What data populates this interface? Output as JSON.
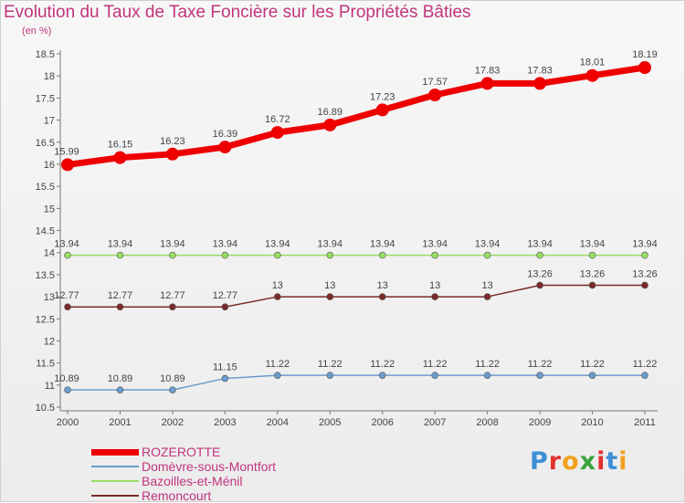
{
  "title": "Evolution du Taux de Taxe Foncière sur les Propriétés Bâties",
  "unit_label": "(en %)",
  "brand": {
    "text": "Proxiti",
    "letters": [
      "P",
      "r",
      "o",
      "x",
      "i",
      "t",
      "i"
    ],
    "colors": [
      "#3c8fd6",
      "#e3312d",
      "#f2a11c",
      "#3aa23a",
      "#e3312d",
      "#3c8fd6",
      "#f2a11c"
    ]
  },
  "chart_data": {
    "type": "line",
    "title": "Evolution du Taux de Taxe Foncière sur les Propriétés Bâties",
    "xlabel": "",
    "ylabel": "(en %)",
    "x": [
      "2000",
      "2001",
      "2002",
      "2003",
      "2004",
      "2005",
      "2006",
      "2007",
      "2008",
      "2009",
      "2010",
      "2011"
    ],
    "ylim": [
      10.5,
      18.5
    ],
    "yticks": [
      "10.5",
      "11",
      "11.5",
      "12",
      "12.5",
      "13",
      "13.5",
      "14",
      "14.5",
      "15",
      "15.5",
      "16",
      "16.5",
      "17",
      "17.5",
      "18",
      "18.5"
    ],
    "grid": false,
    "legend_position": "bottom-left",
    "series": [
      {
        "name": "ROZEROTTE",
        "color": "#ee0000",
        "emphasis": true,
        "values": [
          15.99,
          16.15,
          16.23,
          16.39,
          16.72,
          16.89,
          17.23,
          17.57,
          17.83,
          17.83,
          18.01,
          18.19
        ],
        "labels": [
          "15.99",
          "16.15",
          "16.23",
          "16.39",
          "16.72",
          "16.89",
          "17.23",
          "17.57",
          "17.83",
          "17.83",
          "18.01",
          "18.19"
        ]
      },
      {
        "name": "Domèvre-sous-Montfort",
        "color": "#6a9ccc",
        "values": [
          10.89,
          10.89,
          10.89,
          11.15,
          11.22,
          11.22,
          11.22,
          11.22,
          11.22,
          11.22,
          11.22,
          11.22
        ],
        "labels": [
          "10.89",
          "10.89",
          "10.89",
          "11.15",
          "11.22",
          "11.22",
          "11.22",
          "11.22",
          "11.22",
          "11.22",
          "11.22",
          "11.22"
        ]
      },
      {
        "name": "Bazoilles-et-Ménil",
        "color": "#99dd66",
        "values": [
          13.94,
          13.94,
          13.94,
          13.94,
          13.94,
          13.94,
          13.94,
          13.94,
          13.94,
          13.94,
          13.94,
          13.94
        ],
        "labels": [
          "13.94",
          "13.94",
          "13.94",
          "13.94",
          "13.94",
          "13.94",
          "13.94",
          "13.94",
          "13.94",
          "13.94",
          "13.94",
          "13.94"
        ]
      },
      {
        "name": "Remoncourt",
        "color": "#7a2a2a",
        "values": [
          12.77,
          12.77,
          12.77,
          12.77,
          13,
          13,
          13,
          13,
          13,
          13.26,
          13.26,
          13.26
        ],
        "labels": [
          "12.77",
          "12.77",
          "12.77",
          "12.77",
          "13",
          "13",
          "13",
          "13",
          "13",
          "13.26",
          "13.26",
          "13.26"
        ]
      }
    ]
  }
}
